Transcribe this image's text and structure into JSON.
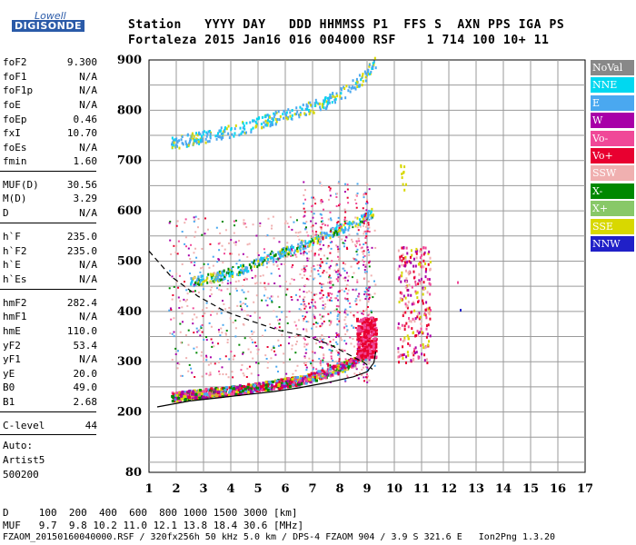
{
  "logo": {
    "line1": "Lowell",
    "line2": "DIGISONDE"
  },
  "header": {
    "row1": "Station   YYYY DAY   DDD HHMMSS P1  FFS S  AXN PPS IGA PS",
    "row2": "Fortaleza 2015 Jan16 016 004000 RSF    1 714 100 10+ 11"
  },
  "scaled": [
    {
      "name": "foF2",
      "value": "9.300"
    },
    {
      "name": "foF1",
      "value": "N/A"
    },
    {
      "name": "foF1p",
      "value": "N/A"
    },
    {
      "name": "foE",
      "value": "N/A"
    },
    {
      "name": "foEp",
      "value": "0.46"
    },
    {
      "name": "fxI",
      "value": "10.70"
    },
    {
      "name": "foEs",
      "value": "N/A"
    },
    {
      "name": "fmin",
      "value": "1.60"
    },
    {
      "name": "MUF(D)",
      "value": "30.56"
    },
    {
      "name": "M(D)",
      "value": "3.29"
    },
    {
      "name": "D",
      "value": "N/A"
    },
    {
      "name": "h`F",
      "value": "235.0"
    },
    {
      "name": "h`F2",
      "value": "235.0"
    },
    {
      "name": "h`E",
      "value": "N/A"
    },
    {
      "name": "h`Es",
      "value": "N/A"
    },
    {
      "name": "hmF2",
      "value": "282.4"
    },
    {
      "name": "hmF1",
      "value": "N/A"
    },
    {
      "name": "hmE",
      "value": "110.0"
    },
    {
      "name": "yF2",
      "value": "53.4"
    },
    {
      "name": "yF1",
      "value": "N/A"
    },
    {
      "name": "yE",
      "value": "20.0"
    },
    {
      "name": "B0",
      "value": "49.0"
    },
    {
      "name": "B1",
      "value": "2.68"
    },
    {
      "name": "C-level",
      "value": "44"
    }
  ],
  "auto": {
    "label": "Auto:",
    "name": "Artist5",
    "version": "500200"
  },
  "legend": [
    {
      "label": "NoVal",
      "color": "#888888"
    },
    {
      "label": "NNE",
      "color": "#00d8f0"
    },
    {
      "label": "E",
      "color": "#4aa8f0"
    },
    {
      "label": "W",
      "color": "#a800a8"
    },
    {
      "label": "Vo-",
      "color": "#f04898"
    },
    {
      "label": "Vo+",
      "color": "#e80030"
    },
    {
      "label": "SSW",
      "color": "#f0b0b0"
    },
    {
      "label": "X-",
      "color": "#008800"
    },
    {
      "label": "X+",
      "color": "#88c868"
    },
    {
      "label": "SSE",
      "color": "#d8d800"
    },
    {
      "label": "NNW",
      "color": "#2020c8"
    }
  ],
  "footer": {
    "row_d": "D     100  200  400  600  800 1000 1500 3000 [km]",
    "row_muf": "MUF   9.7  9.8 10.2 11.0 12.1 13.8 18.4 30.6 [MHz]",
    "row_file": "FZAOM_20150160040000.RSF / 320fx256h 50 kHz 5.0 km / DPS-4 FZAOM 904 / 3.9 S 321.6 E   Ion2Png 1.3.20"
  },
  "chart_data": {
    "type": "scatter",
    "xlim": [
      1,
      17
    ],
    "ylim": [
      80,
      900
    ],
    "x_ticks": [
      "1",
      "2",
      "3",
      "4",
      "5",
      "6",
      "7",
      "8",
      "9",
      "10",
      "11",
      "12",
      "13",
      "14",
      "15",
      "16",
      "17"
    ],
    "y_ticks": [
      "200",
      "300",
      "400",
      "500",
      "600",
      "700",
      "800",
      "900"
    ],
    "y_tick_extra": "80",
    "grid": true,
    "traces": {
      "o_trace_F": {
        "x": [
          1.8,
          2.5,
          3.2,
          4.0,
          4.8,
          5.6,
          6.4,
          7.2,
          7.8,
          8.4,
          8.9,
          9.1,
          9.2
        ],
        "y": [
          232,
          236,
          240,
          244,
          250,
          256,
          264,
          275,
          286,
          300,
          315,
          330,
          345
        ]
      },
      "multi_2F": {
        "x": [
          2.5,
          3.5,
          4.5,
          5.5,
          6.5,
          7.5,
          8.2,
          8.8,
          9.2
        ],
        "y": [
          460,
          472,
          488,
          510,
          532,
          555,
          570,
          585,
          600
        ]
      },
      "multi_3F": {
        "x": [
          1.8,
          2.5,
          3.5,
          4.5,
          5.5,
          6.5,
          7.5,
          8.2,
          8.8,
          9.3
        ],
        "y": [
          735,
          745,
          755,
          768,
          785,
          800,
          818,
          840,
          865,
          900
        ]
      },
      "sporadic": {
        "x": [
          2.0,
          3.0,
          4.0,
          5.0,
          6.0,
          7.0,
          7.5,
          8.2,
          8.8,
          9.0,
          10.5
        ],
        "y": [
          330,
          340,
          345,
          350,
          360,
          380,
          330,
          340,
          360,
          380,
          400
        ]
      }
    },
    "model_profile": {
      "solid": {
        "x": [
          1.3,
          2.5,
          3.5,
          4.5,
          5.5,
          6.5,
          7.5,
          8.5,
          9.0,
          9.25,
          9.32
        ],
        "y": [
          210,
          222,
          228,
          234,
          240,
          248,
          258,
          270,
          280,
          298,
          320
        ]
      },
      "dashed": {
        "x": [
          1.0,
          1.8,
          2.8,
          3.8,
          4.8,
          5.8,
          6.8,
          7.6,
          8.3,
          8.9,
          9.2
        ],
        "y": [
          520,
          470,
          430,
          400,
          380,
          362,
          350,
          335,
          315,
          298,
          285
        ]
      }
    }
  }
}
